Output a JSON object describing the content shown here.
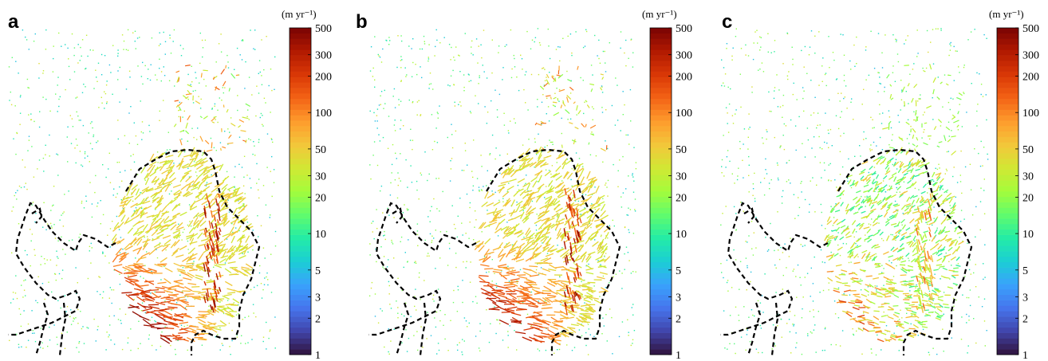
{
  "panel_labels": [
    "a",
    "b",
    "c"
  ],
  "colorbar": {
    "unit_label": "(m yr⁻¹)",
    "tick_labels": [
      "1",
      "2",
      "3",
      "5",
      "10",
      "20",
      "30",
      "50",
      "100",
      "200",
      "300",
      "500"
    ],
    "scale": "log",
    "range": [
      1,
      500
    ]
  },
  "chart_data": [
    {
      "type": "heatmap",
      "panel": "a",
      "description_of_marks": "velocity vectors colored by speed on log scale",
      "colorbar_range": [
        1,
        500
      ],
      "colorbar_ticks": [
        1,
        2,
        3,
        5,
        10,
        20,
        30,
        50,
        100,
        200,
        300,
        500
      ],
      "intensity": 1.0
    },
    {
      "type": "heatmap",
      "panel": "b",
      "colorbar_range": [
        1,
        500
      ],
      "colorbar_ticks": [
        1,
        2,
        3,
        5,
        10,
        20,
        30,
        50,
        100,
        200,
        300,
        500
      ],
      "intensity": 0.95
    },
    {
      "type": "heatmap",
      "panel": "c",
      "colorbar_range": [
        1,
        500
      ],
      "colorbar_ticks": [
        1,
        2,
        3,
        5,
        10,
        20,
        30,
        50,
        100,
        200,
        300,
        500
      ],
      "intensity": 0.35
    }
  ],
  "colors": {
    "boundary": "#000000",
    "colormap": [
      "#30123b",
      "#4145ab",
      "#4675ed",
      "#39a2fc",
      "#1bcfd4",
      "#24eca6",
      "#61fc6c",
      "#a4fc3b",
      "#d1e834",
      "#f3c63a",
      "#fe9b2d",
      "#f36315",
      "#d93806",
      "#b11901",
      "#7a0403"
    ]
  }
}
